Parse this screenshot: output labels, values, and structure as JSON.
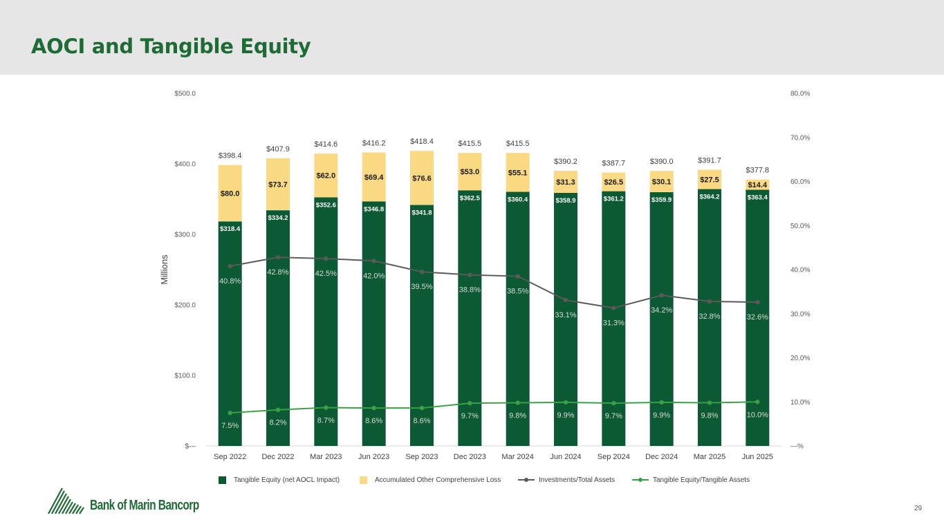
{
  "page": {
    "title": "AOCI and Tangible Equity",
    "page_number": "29"
  },
  "logo": {
    "text": "Bank of Marin Bancorp",
    "icon": "bank-of-marin-triangle-logo"
  },
  "colors": {
    "header_band": "#e6e6e6",
    "title": "#1e6b35",
    "tangible_equity": "#0c5a33",
    "aocl": "#fcd983",
    "investments_line": "#595959",
    "te_ratio_line": "#3aa045"
  },
  "chart_data": {
    "type": "bar",
    "stacked": true,
    "categories": [
      "Sep 2022",
      "Dec 2022",
      "Mar 2023",
      "Jun 2023",
      "Sep 2023",
      "Dec 2023",
      "Mar 2024",
      "Jun 2024",
      "Sep 2024",
      "Dec 2024",
      "Mar 2025",
      "Jun 2025"
    ],
    "ylabel": "Millions",
    "ylim": [
      0,
      500
    ],
    "y_ticks": [
      "$—",
      "$100.0",
      "$200.0",
      "$300.0",
      "$400.0",
      "$500.0"
    ],
    "y2lim": [
      0,
      80
    ],
    "y2_ticks": [
      "—%",
      "10.0%",
      "20.0%",
      "30.0%",
      "40.0%",
      "50.0%",
      "60.0%",
      "70.0%",
      "80.0%"
    ],
    "grid": false,
    "legend_position": "bottom",
    "series": [
      {
        "name": "Tangible Equity (net AOCL Impact)",
        "kind": "bar",
        "values": [
          318.4,
          334.2,
          352.6,
          346.8,
          341.8,
          362.5,
          360.4,
          358.9,
          361.2,
          359.9,
          364.2,
          363.4
        ],
        "labels": [
          "$318.4",
          "$334.2",
          "$352.6",
          "$346.8",
          "$341.8",
          "$362.5",
          "$360.4",
          "$358.9",
          "$361.2",
          "$359.9",
          "$364.2",
          "$363.4"
        ]
      },
      {
        "name": "Accumulated Other Comprehensive Loss",
        "kind": "bar",
        "values": [
          80.0,
          73.7,
          62.0,
          69.4,
          76.6,
          53.0,
          55.1,
          31.3,
          26.5,
          30.1,
          27.5,
          14.4
        ],
        "labels": [
          "$80.0",
          "$73.7",
          "$62.0",
          "$69.4",
          "$76.6",
          "$53.0",
          "$55.1",
          "$31.3",
          "$26.5",
          "$30.1",
          "$27.5",
          "$14.4"
        ]
      },
      {
        "name": "Investments/Total Assets",
        "kind": "line",
        "axis": "right",
        "values": [
          40.8,
          42.8,
          42.5,
          42.0,
          39.5,
          38.8,
          38.5,
          33.1,
          31.3,
          34.2,
          32.8,
          32.6
        ],
        "labels": [
          "40.8%",
          "42.8%",
          "42.5%",
          "42.0%",
          "39.5%",
          "38.8%",
          "38.5%",
          "33.1%",
          "31.3%",
          "34.2%",
          "32.8%",
          "32.6%"
        ]
      },
      {
        "name": "Tangible Equity/Tangible Assets",
        "kind": "line",
        "axis": "right",
        "values": [
          7.5,
          8.2,
          8.7,
          8.6,
          8.6,
          9.7,
          9.8,
          9.9,
          9.7,
          9.9,
          9.8,
          10.0
        ],
        "labels": [
          "7.5%",
          "8.2%",
          "8.7%",
          "8.6%",
          "8.6%",
          "9.7%",
          "9.8%",
          "9.9%",
          "9.7%",
          "9.9%",
          "9.8%",
          "10.0%"
        ]
      }
    ],
    "totals": [
      "$398.4",
      "$407.9",
      "$414.6",
      "$416.2",
      "$418.4",
      "$415.5",
      "$415.5",
      "$390.2",
      "$387.7",
      "$390.0",
      "$391.7",
      "$377.8"
    ]
  }
}
